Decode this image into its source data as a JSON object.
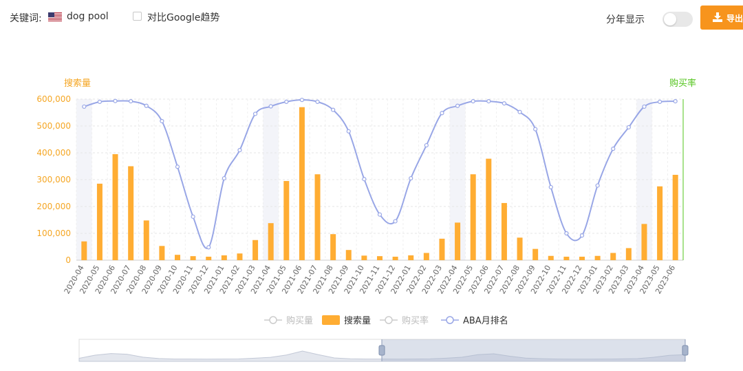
{
  "toolbar": {
    "keyword_label": "关键词:",
    "keyword_value": "dog pool",
    "flag_icon": "us-flag-icon",
    "compare_label": "对比Google趋势",
    "compare_checked": false,
    "year_split_label": "分年显示",
    "year_split_on": false,
    "export_label": "导出",
    "export_icon": "download-icon",
    "accent_color": "#f7941d"
  },
  "chart_data": {
    "type": "bar",
    "left_axis_label": "搜索量",
    "right_axis_label": "购买率",
    "left_axis_color": "#f5a623",
    "right_axis_color": "#52c41a",
    "ylim": [
      0,
      600000
    ],
    "yticks": [
      "0",
      "100,000",
      "200,000",
      "300,000",
      "400,000",
      "500,000",
      "600,000"
    ],
    "categories": [
      "2020-04",
      "2020-05",
      "2020-06",
      "2020-07",
      "2020-08",
      "2020-09",
      "2020-10",
      "2020-11",
      "2020-12",
      "2021-01",
      "2021-02",
      "2021-03",
      "2021-04",
      "2021-05",
      "2021-06",
      "2021-07",
      "2021-08",
      "2021-09",
      "2021-10",
      "2021-11",
      "2021-12",
      "2022-01",
      "2022-02",
      "2022-03",
      "2022-04",
      "2022-05",
      "2022-06",
      "2022-07",
      "2022-08",
      "2022-09",
      "2022-10",
      "2022-11",
      "2022-12",
      "2023-01",
      "2023-02",
      "2023-03",
      "2023-04",
      "2023-05",
      "2023-06"
    ],
    "series": [
      {
        "name": "搜索量",
        "type": "bar",
        "color": "#ffad33",
        "values": [
          70000,
          285000,
          395000,
          350000,
          148000,
          53000,
          20000,
          15000,
          13000,
          18000,
          25000,
          75000,
          138000,
          295000,
          570000,
          320000,
          97000,
          38000,
          17000,
          15000,
          13000,
          18000,
          27000,
          80000,
          140000,
          320000,
          378000,
          213000,
          84000,
          42000,
          16000,
          13000,
          13000,
          16000,
          27000,
          45000,
          135000,
          275000,
          318000
        ]
      },
      {
        "name": "ABA月排名",
        "type": "line",
        "color": "#98a6e6",
        "values": [
          572000,
          590000,
          593000,
          592000,
          575000,
          518000,
          348000,
          162000,
          48000,
          305000,
          410000,
          545000,
          573000,
          590000,
          597000,
          590000,
          560000,
          480000,
          302000,
          170000,
          145000,
          305000,
          428000,
          548000,
          575000,
          592000,
          592000,
          584000,
          552000,
          488000,
          272000,
          100000,
          92000,
          278000,
          415000,
          495000,
          572000,
          590000,
          592000
        ]
      }
    ],
    "legend": [
      {
        "name": "购买量",
        "active": false
      },
      {
        "name": "搜索量",
        "active": true
      },
      {
        "name": "购买率",
        "active": false
      },
      {
        "name": "ABA月排名",
        "active": true
      }
    ],
    "legend_position": "bottom",
    "shaded_months": [
      "2020-04",
      "2021-04",
      "2022-04",
      "2023-04"
    ],
    "grid": true
  }
}
